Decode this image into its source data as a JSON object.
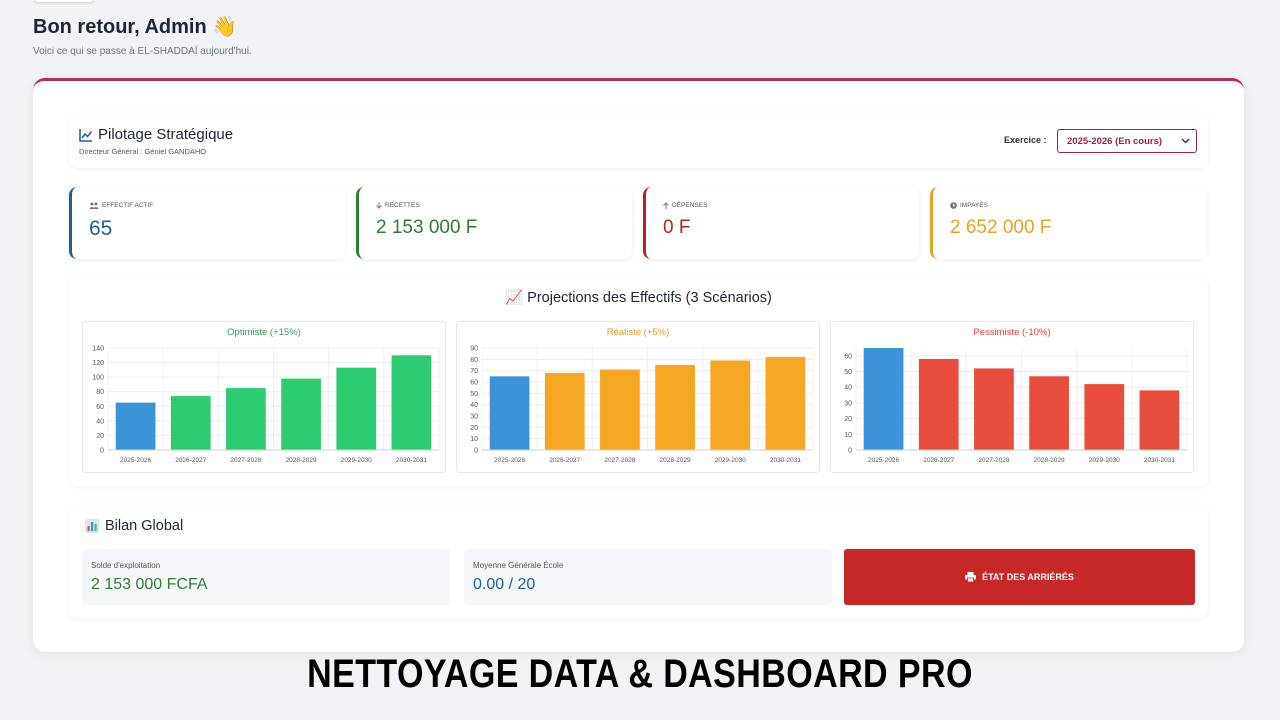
{
  "header": {
    "greeting": "Bon retour, Admin 👋",
    "subtitle": "Voici ce qui se passe à EL-SHADDAÏ aujourd'hui."
  },
  "pilotage": {
    "title": "Pilotage Stratégique",
    "subtitle": "Directeur Général : Géniel GANDAHO",
    "exercice_label": "Exercice :",
    "exercice_value": "2025-2026 (En cours)"
  },
  "kpis": [
    {
      "label": "EFFECTIF ACTIF",
      "value": "65",
      "icon": "users-icon",
      "color": "#1e5f95"
    },
    {
      "label": "RECETTES",
      "value": "2 153 000 F",
      "icon": "arrow-down-icon",
      "color": "#2e7d32"
    },
    {
      "label": "DÉPENSES",
      "value": "0 F",
      "icon": "arrow-up-icon",
      "color": "#b3261e"
    },
    {
      "label": "IMPAYÉS",
      "value": "2 652 000 F",
      "icon": "clock-icon",
      "color": "#e0a526"
    }
  ],
  "projections": {
    "title": "📈 Projections des Effectifs (3 Scénarios)"
  },
  "chart_data": [
    {
      "type": "bar",
      "title": "Optimiste (+15%)",
      "title_color": "#2e9e5b",
      "categories": [
        "2025-2026",
        "2026-2027",
        "2027-2028",
        "2028-2029",
        "2029-2030",
        "2030-2031"
      ],
      "values": [
        65,
        74,
        85,
        98,
        113,
        130
      ],
      "colors": [
        "#3b93d8",
        "#2ecc71",
        "#2ecc71",
        "#2ecc71",
        "#2ecc71",
        "#2ecc71"
      ],
      "ylim": [
        0,
        140
      ],
      "yticks": [
        0,
        20,
        40,
        60,
        80,
        100,
        120,
        140
      ]
    },
    {
      "type": "bar",
      "title": "Réaliste (+5%)",
      "title_color": "#e89b1c",
      "categories": [
        "2025-2026",
        "2026-2027",
        "2027-2028",
        "2028-2029",
        "2029-2030",
        "2030-2031"
      ],
      "values": [
        65,
        68,
        71,
        75,
        79,
        82
      ],
      "colors": [
        "#3b93d8",
        "#f5a623",
        "#f5a623",
        "#f5a623",
        "#f5a623",
        "#f5a623"
      ],
      "ylim": [
        0,
        90
      ],
      "yticks": [
        0,
        10,
        20,
        30,
        40,
        50,
        60,
        70,
        80,
        90
      ]
    },
    {
      "type": "bar",
      "title": "Pessimiste (-10%)",
      "title_color": "#d9443b",
      "categories": [
        "2025-2026",
        "2026-2027",
        "2027-2028",
        "2028-2029",
        "2029-2030",
        "2030-2031"
      ],
      "values": [
        65,
        58,
        52,
        47,
        42,
        38
      ],
      "colors": [
        "#3b93d8",
        "#e74c3c",
        "#e74c3c",
        "#e74c3c",
        "#e74c3c",
        "#e74c3c"
      ],
      "ylim": [
        0,
        65
      ],
      "yticks": [
        0,
        10,
        20,
        30,
        40,
        50,
        60
      ]
    }
  ],
  "bilan": {
    "title": "Bilan Global",
    "solde_label": "Solde d'exploitation",
    "solde_value": "2 153 000 FCFA",
    "moyenne_label": "Moyenne Générale École",
    "moyenne_value": "0.00 / 20",
    "button_label": "ÉTAT DES ARRIÉRÉS"
  },
  "overlay": {
    "caption": "NETTOYAGE DATA & DASHBOARD PRO"
  }
}
